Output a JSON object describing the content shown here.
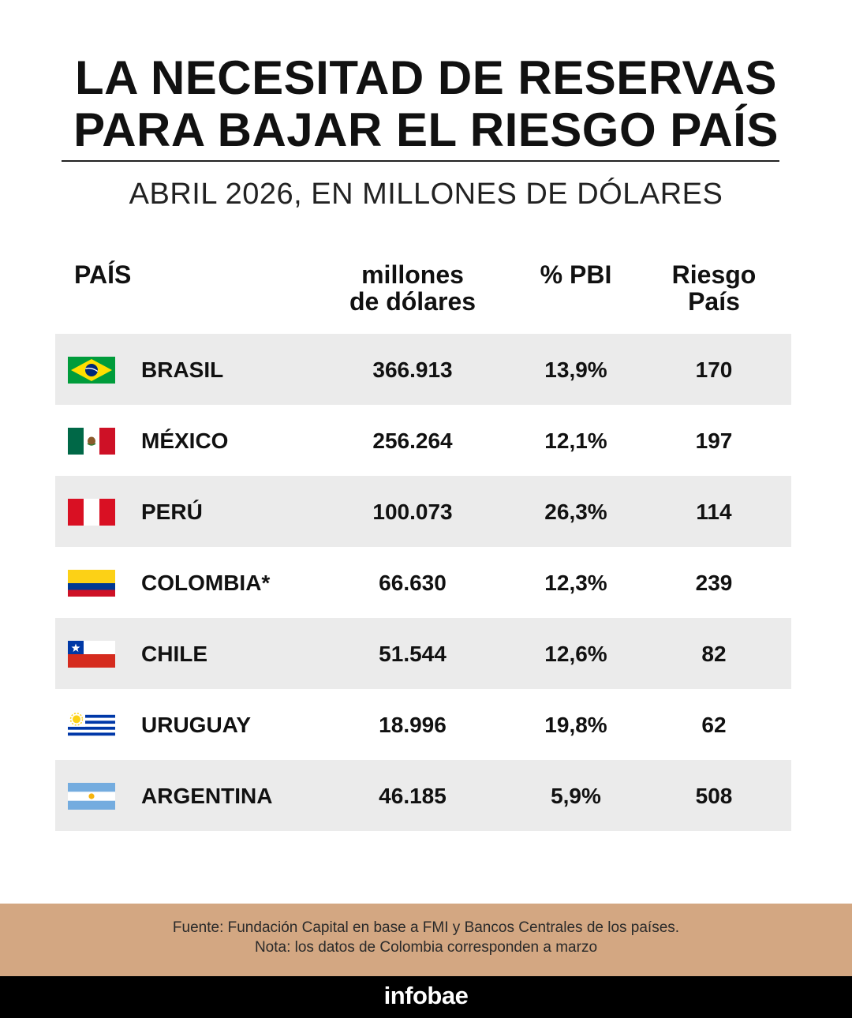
{
  "header": {
    "title_line1": "LA NECESITAD DE RESERVAS",
    "title_line2": "PARA BAJAR EL RIESGO PAÍS",
    "subtitle": "ABRIL 2026, EN MILLONES DE DÓLARES"
  },
  "columns": {
    "country": "PAÍS",
    "millions_line1": "millones",
    "millions_line2": "de dólares",
    "pbi": "% PBI",
    "risk_line1": "Riesgo",
    "risk_line2": "País"
  },
  "chart_data": {
    "type": "table",
    "columns": [
      "PAÍS",
      "millones de dólares",
      "% PBI",
      "Riesgo País"
    ],
    "rows": [
      {
        "country": "BRASIL",
        "flag": "brazil-flag-icon",
        "millions": "366.913",
        "pbi": "13,9%",
        "risk": "170"
      },
      {
        "country": "MÉXICO",
        "flag": "mexico-flag-icon",
        "millions": "256.264",
        "pbi": "12,1%",
        "risk": "197"
      },
      {
        "country": "PERÚ",
        "flag": "peru-flag-icon",
        "millions": "100.073",
        "pbi": "26,3%",
        "risk": "114"
      },
      {
        "country": "COLOMBIA*",
        "flag": "colombia-flag-icon",
        "millions": "66.630",
        "pbi": "12,3%",
        "risk": "239"
      },
      {
        "country": "CHILE",
        "flag": "chile-flag-icon",
        "millions": "51.544",
        "pbi": "12,6%",
        "risk": "82"
      },
      {
        "country": "URUGUAY",
        "flag": "uruguay-flag-icon",
        "millions": "18.996",
        "pbi": "19,8%",
        "risk": "62"
      },
      {
        "country": "ARGENTINA",
        "flag": "argentina-flag-icon",
        "millions": "46.185",
        "pbi": "5,9%",
        "risk": "508"
      }
    ]
  },
  "footer": {
    "source": "Fuente: Fundación Capital en base a FMI y Bancos Centrales de los países.",
    "note": "Nota: los datos de Colombia corresponden a marzo"
  },
  "brand": "infobae",
  "colors": {
    "row_shade": "#ebebeb",
    "footer_bg": "#d3a782",
    "brand_bar": "#000000"
  }
}
